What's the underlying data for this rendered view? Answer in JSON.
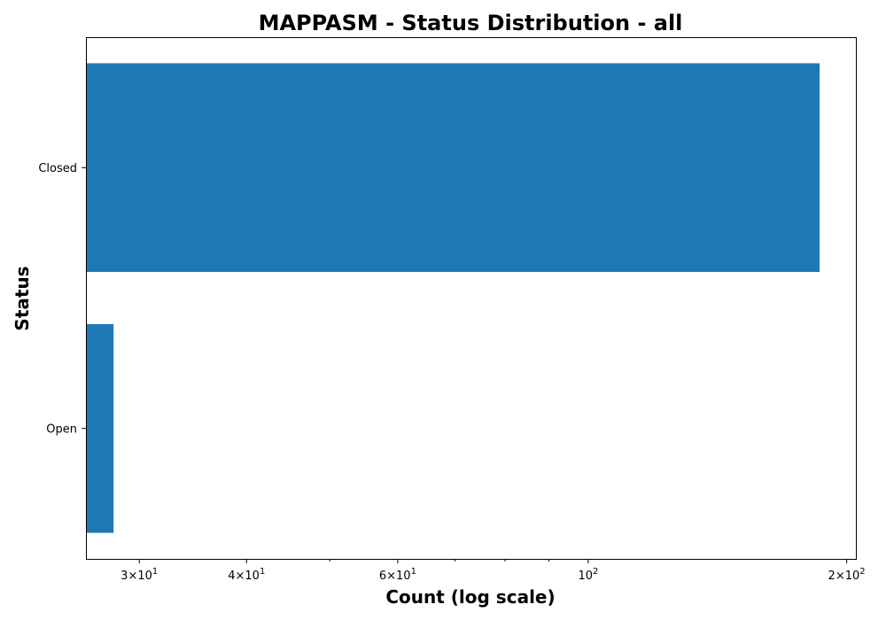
{
  "chart_data": {
    "type": "bar",
    "orientation": "horizontal",
    "title": "MAPPASM - Status Distribution - all",
    "xlabel": "Count (log scale)",
    "ylabel": "Status",
    "x_scale": "log",
    "xlim": [
      26,
      205
    ],
    "categories": [
      "Closed",
      "Open"
    ],
    "series": [
      {
        "values": [
          186,
          28
        ]
      }
    ],
    "x_major_ticks": [
      {
        "value": 30,
        "mantissa": "3",
        "base": "10",
        "exponent": "1"
      },
      {
        "value": 40,
        "mantissa": "4",
        "base": "10",
        "exponent": "1"
      },
      {
        "value": 60,
        "mantissa": "6",
        "base": "10",
        "exponent": "1"
      },
      {
        "value": 100,
        "mantissa": "",
        "base": "10",
        "exponent": "2"
      },
      {
        "value": 200,
        "mantissa": "2",
        "base": "10",
        "exponent": "2"
      }
    ],
    "x_minor_ticks": [
      50,
      70,
      80,
      90
    ],
    "bar_color": "#1f77b4",
    "grid": false,
    "legend": "none"
  }
}
